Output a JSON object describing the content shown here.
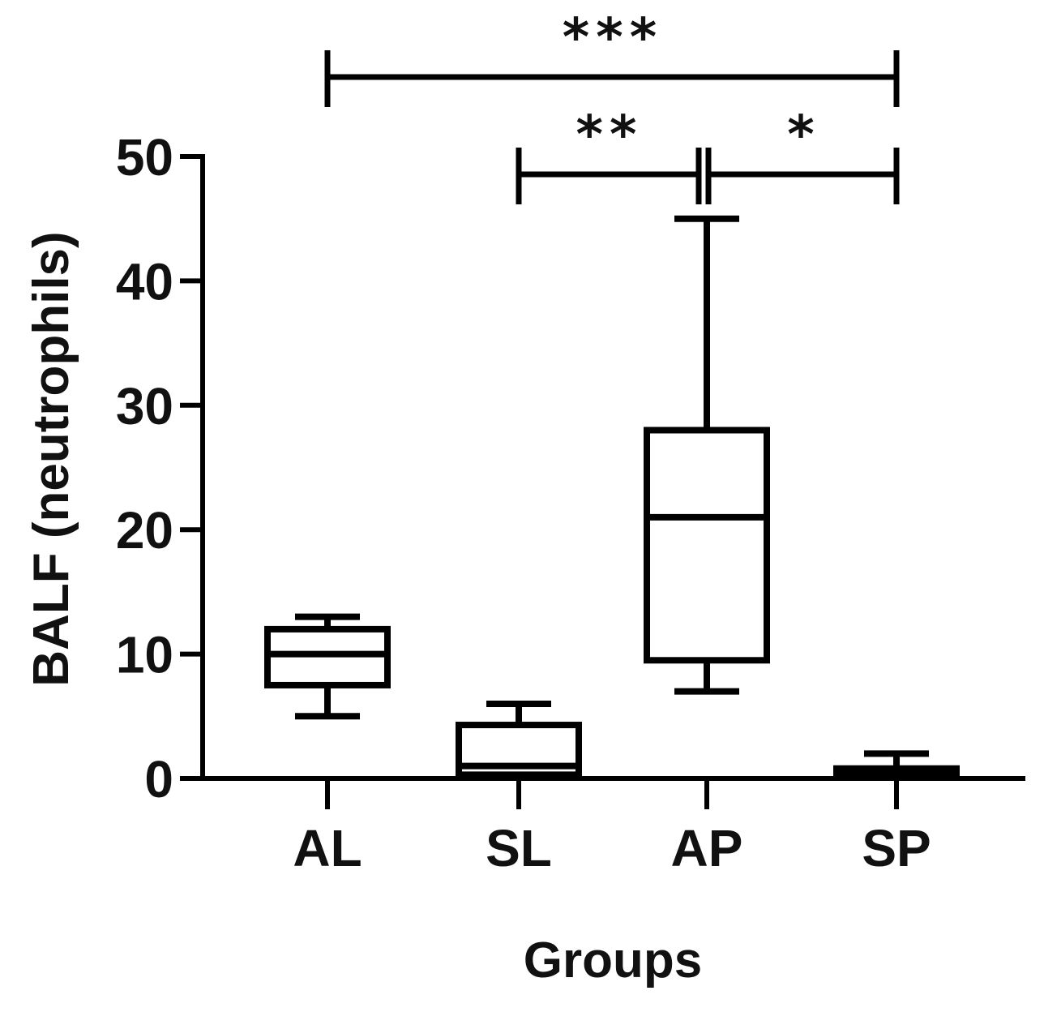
{
  "chart_data": {
    "type": "box",
    "title": "",
    "xlabel": "Groups",
    "ylabel": "BALF (neutrophils)",
    "ylim": [
      0,
      50
    ],
    "yticks": [
      "0",
      "10",
      "20",
      "30",
      "40",
      "50"
    ],
    "categories": [
      "AL",
      "SL",
      "AP",
      "SP"
    ],
    "boxes": [
      {
        "group": "AL",
        "min": 5,
        "q1": 7.5,
        "median": 10,
        "q3": 12,
        "max": 13
      },
      {
        "group": "SL",
        "min": 0,
        "q1": 0.3,
        "median": 1,
        "q3": 4.3,
        "max": 6
      },
      {
        "group": "AP",
        "min": 7,
        "q1": 9.5,
        "median": 21,
        "q3": 28,
        "max": 45
      },
      {
        "group": "SP",
        "min": 0,
        "q1": 0.2,
        "median": 0.5,
        "q3": 0.8,
        "max": 2
      }
    ],
    "significance": [
      {
        "from": "AL",
        "to": "SP",
        "label": "***"
      },
      {
        "from": "SL",
        "to": "AP",
        "label": "**"
      },
      {
        "from": "AP",
        "to": "SP",
        "label": "*"
      }
    ],
    "grid": false,
    "legend": "none"
  }
}
